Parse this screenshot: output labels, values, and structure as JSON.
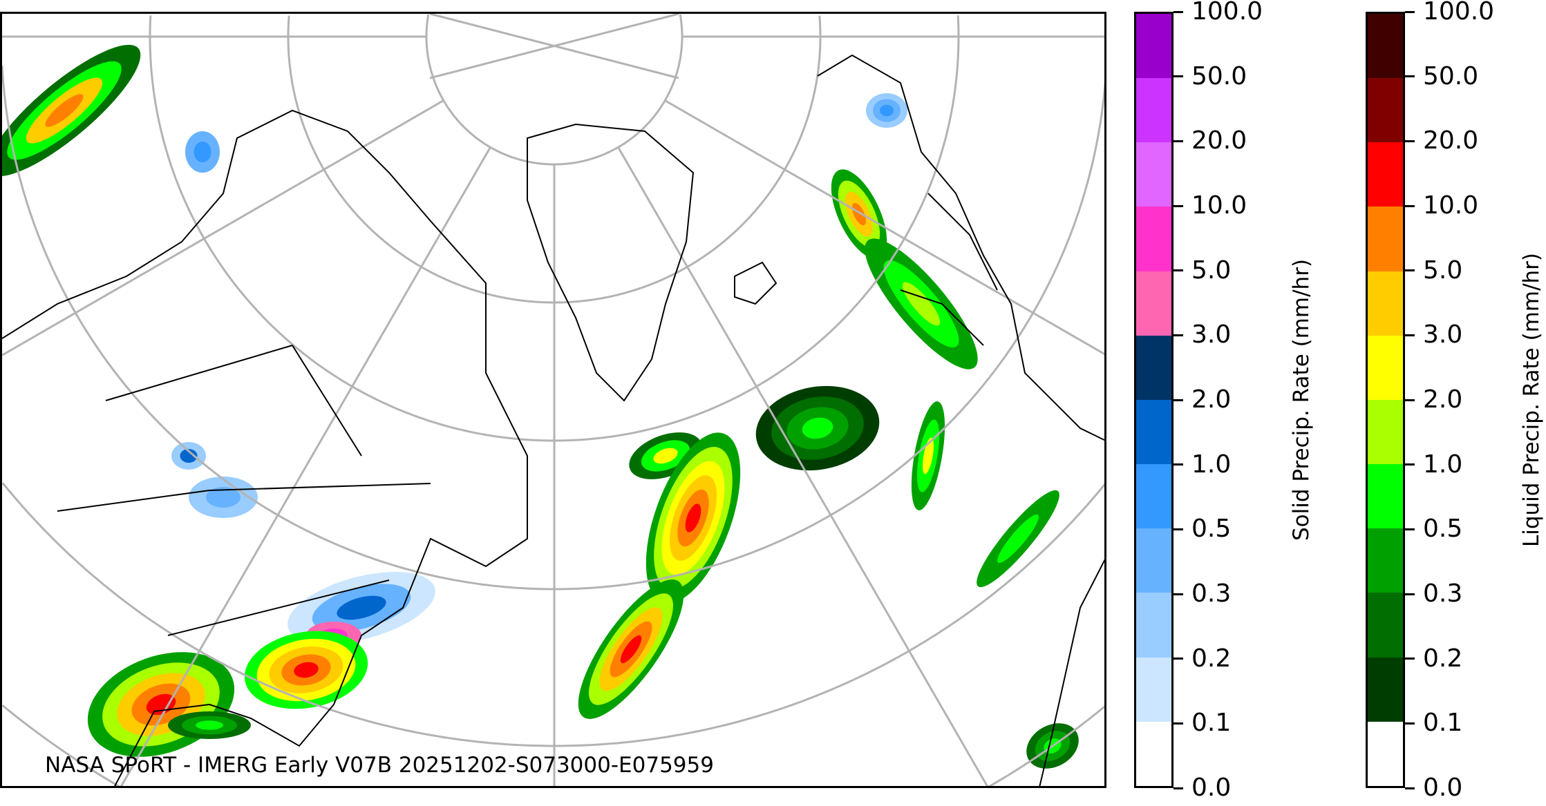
{
  "caption": "NASA SPoRT - IMERG Early V07B 20251202-S073000-E075959",
  "map": {
    "projection": "north-polar-stereographic",
    "graticule_color": "#b3b3b3",
    "coastline_color": "#000000"
  },
  "colorbars": [
    {
      "label": "Solid Precip. Rate (mm/hr)",
      "ticks": [
        "0.0",
        "0.1",
        "0.2",
        "0.3",
        "0.5",
        "1.0",
        "2.0",
        "3.0",
        "5.0",
        "10.0",
        "20.0",
        "50.0",
        "100.0"
      ],
      "colors": [
        "#ffffff",
        "#cce6ff",
        "#99ccff",
        "#66b2ff",
        "#3399ff",
        "#0066cc",
        "#003366",
        "#ff66b2",
        "#ff33cc",
        "#e066ff",
        "#cc33ff",
        "#9900cc"
      ]
    },
    {
      "label": "Liquid Precip. Rate (mm/hr)",
      "ticks": [
        "0.0",
        "0.1",
        "0.2",
        "0.3",
        "0.5",
        "1.0",
        "2.0",
        "3.0",
        "5.0",
        "10.0",
        "20.0",
        "50.0",
        "100.0"
      ],
      "colors": [
        "#ffffff",
        "#003d00",
        "#006e00",
        "#00a000",
        "#00ff00",
        "#aaff00",
        "#ffff00",
        "#ffcc00",
        "#ff8000",
        "#ff0000",
        "#800000",
        "#400000"
      ]
    }
  ]
}
